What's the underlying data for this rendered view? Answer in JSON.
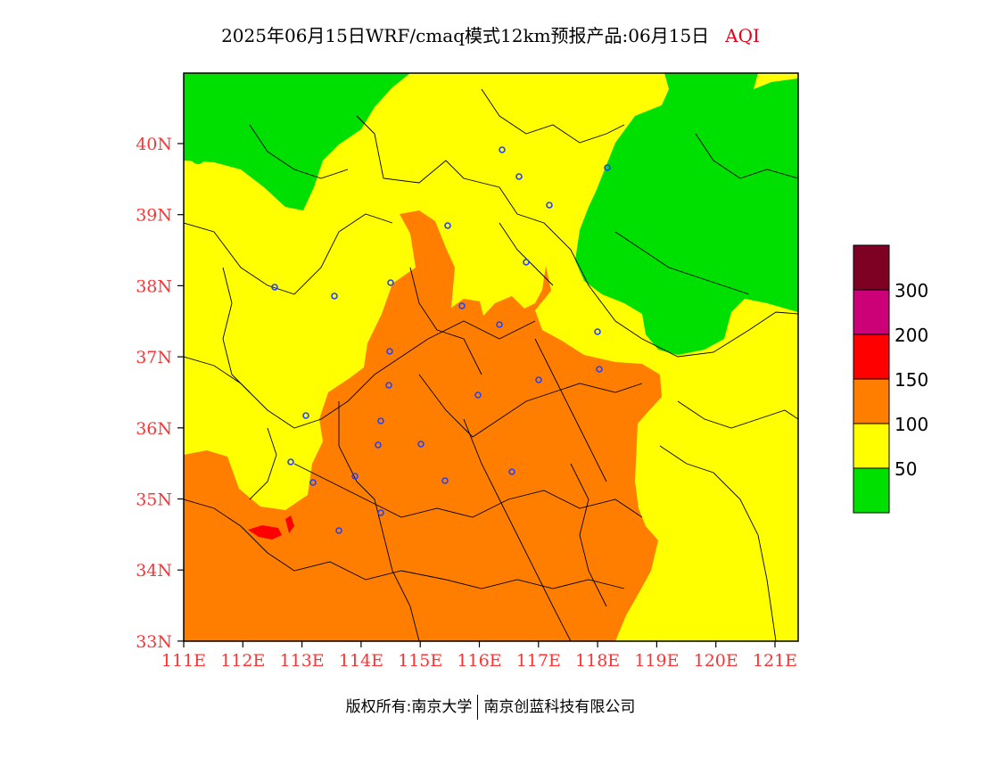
{
  "title": {
    "main": "2025年06月15日WRF/cmaq模式12km预报产品:06月15日",
    "variable": "AQI"
  },
  "map": {
    "lat_labels": [
      "40N",
      "39N",
      "38N",
      "37N",
      "36N",
      "35N",
      "34N",
      "33N"
    ],
    "lon_labels": [
      "111E",
      "112E",
      "113E",
      "114E",
      "115E",
      "116E",
      "117E",
      "118E",
      "119E",
      "120E",
      "121E"
    ],
    "extent": {
      "lon_min": 111,
      "lon_max": 121.4,
      "lat_min": 33,
      "lat_max": 41
    }
  },
  "legend": {
    "levels": [
      {
        "label": "50",
        "color": "#00e000"
      },
      {
        "label": "100",
        "color": "#ffff00"
      },
      {
        "label": "150",
        "color": "#ff7e00"
      },
      {
        "label": "200",
        "color": "#ff0000"
      },
      {
        "label": "300",
        "color": "#cc0077"
      },
      {
        "label": "",
        "color": "#7e0023"
      }
    ]
  },
  "footer": {
    "left": "版权所有:南京大学",
    "right": "南京创蓝科技有限公司"
  }
}
